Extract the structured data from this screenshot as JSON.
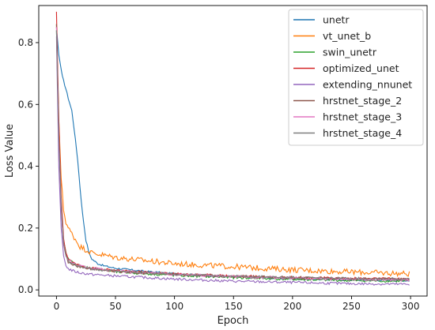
{
  "chart_data": {
    "type": "line",
    "title": "",
    "xlabel": "Epoch",
    "ylabel": "Loss Value",
    "xlim": [
      -15,
      314
    ],
    "ylim": [
      -0.02,
      0.92
    ],
    "xticks": [
      0,
      50,
      100,
      150,
      200,
      250,
      300
    ],
    "yticks": [
      0.0,
      0.2,
      0.4,
      0.6,
      0.8
    ],
    "grid": false,
    "legend_position": "top-right",
    "series": [
      {
        "name": "unetr",
        "color": "#1f77b4",
        "noise": 0.003,
        "points": [
          [
            0,
            0.85
          ],
          [
            2,
            0.76
          ],
          [
            5,
            0.69
          ],
          [
            8,
            0.65
          ],
          [
            10,
            0.62
          ],
          [
            13,
            0.58
          ],
          [
            15,
            0.52
          ],
          [
            18,
            0.42
          ],
          [
            20,
            0.33
          ],
          [
            22,
            0.25
          ],
          [
            25,
            0.16
          ],
          [
            28,
            0.115
          ],
          [
            30,
            0.1
          ],
          [
            35,
            0.085
          ],
          [
            40,
            0.078
          ],
          [
            50,
            0.07
          ],
          [
            75,
            0.06
          ],
          [
            100,
            0.052
          ],
          [
            150,
            0.042
          ],
          [
            200,
            0.036
          ],
          [
            250,
            0.032
          ],
          [
            299,
            0.03
          ]
        ]
      },
      {
        "name": "vt_unet_b",
        "color": "#ff7f0e",
        "noise": 0.009,
        "points": [
          [
            0,
            0.86
          ],
          [
            2,
            0.55
          ],
          [
            4,
            0.36
          ],
          [
            6,
            0.26
          ],
          [
            8,
            0.22
          ],
          [
            10,
            0.2
          ],
          [
            15,
            0.17
          ],
          [
            20,
            0.14
          ],
          [
            25,
            0.13
          ],
          [
            30,
            0.12
          ],
          [
            50,
            0.105
          ],
          [
            100,
            0.085
          ],
          [
            150,
            0.075
          ],
          [
            200,
            0.065
          ],
          [
            250,
            0.058
          ],
          [
            299,
            0.052
          ]
        ]
      },
      {
        "name": "swin_unetr",
        "color": "#2ca02c",
        "noise": 0.004,
        "points": [
          [
            0,
            0.84
          ],
          [
            2,
            0.5
          ],
          [
            4,
            0.28
          ],
          [
            6,
            0.16
          ],
          [
            8,
            0.12
          ],
          [
            10,
            0.1
          ],
          [
            15,
            0.085
          ],
          [
            20,
            0.078
          ],
          [
            30,
            0.07
          ],
          [
            50,
            0.058
          ],
          [
            100,
            0.047
          ],
          [
            150,
            0.04
          ],
          [
            200,
            0.034
          ],
          [
            250,
            0.03
          ],
          [
            299,
            0.028
          ]
        ]
      },
      {
        "name": "optimized_unet",
        "color": "#d62728",
        "noise": 0.004,
        "points": [
          [
            0,
            0.9
          ],
          [
            2,
            0.55
          ],
          [
            4,
            0.3
          ],
          [
            6,
            0.17
          ],
          [
            8,
            0.12
          ],
          [
            10,
            0.1
          ],
          [
            15,
            0.085
          ],
          [
            20,
            0.08
          ],
          [
            30,
            0.07
          ],
          [
            50,
            0.062
          ],
          [
            100,
            0.052
          ],
          [
            150,
            0.045
          ],
          [
            200,
            0.04
          ],
          [
            250,
            0.037
          ],
          [
            299,
            0.035
          ]
        ]
      },
      {
        "name": "extending_nnunet",
        "color": "#9467bd",
        "noise": 0.004,
        "points": [
          [
            0,
            0.82
          ],
          [
            2,
            0.4
          ],
          [
            4,
            0.2
          ],
          [
            6,
            0.11
          ],
          [
            8,
            0.08
          ],
          [
            10,
            0.068
          ],
          [
            15,
            0.06
          ],
          [
            20,
            0.055
          ],
          [
            30,
            0.05
          ],
          [
            50,
            0.045
          ],
          [
            100,
            0.035
          ],
          [
            150,
            0.028
          ],
          [
            200,
            0.024
          ],
          [
            250,
            0.02
          ],
          [
            299,
            0.018
          ]
        ]
      },
      {
        "name": "hrstnet_stage_2",
        "color": "#8c564b",
        "noise": 0.004,
        "points": [
          [
            0,
            0.86
          ],
          [
            2,
            0.5
          ],
          [
            4,
            0.28
          ],
          [
            6,
            0.15
          ],
          [
            8,
            0.11
          ],
          [
            10,
            0.09
          ],
          [
            15,
            0.08
          ],
          [
            20,
            0.075
          ],
          [
            30,
            0.068
          ],
          [
            50,
            0.06
          ],
          [
            100,
            0.05
          ],
          [
            150,
            0.044
          ],
          [
            200,
            0.04
          ],
          [
            250,
            0.036
          ],
          [
            299,
            0.034
          ]
        ]
      },
      {
        "name": "hrstnet_stage_3",
        "color": "#e377c2",
        "noise": 0.004,
        "points": [
          [
            0,
            0.85
          ],
          [
            2,
            0.5
          ],
          [
            4,
            0.27
          ],
          [
            6,
            0.15
          ],
          [
            8,
            0.11
          ],
          [
            10,
            0.095
          ],
          [
            15,
            0.085
          ],
          [
            20,
            0.078
          ],
          [
            30,
            0.07
          ],
          [
            50,
            0.062
          ],
          [
            100,
            0.05
          ],
          [
            150,
            0.043
          ],
          [
            200,
            0.038
          ],
          [
            250,
            0.034
          ],
          [
            299,
            0.032
          ]
        ]
      },
      {
        "name": "hrstnet_stage_4",
        "color": "#7f7f7f",
        "noise": 0.004,
        "points": [
          [
            0,
            0.84
          ],
          [
            2,
            0.5
          ],
          [
            4,
            0.27
          ],
          [
            6,
            0.15
          ],
          [
            8,
            0.11
          ],
          [
            10,
            0.092
          ],
          [
            15,
            0.082
          ],
          [
            20,
            0.076
          ],
          [
            30,
            0.068
          ],
          [
            50,
            0.06
          ],
          [
            100,
            0.05
          ],
          [
            150,
            0.044
          ],
          [
            200,
            0.04
          ],
          [
            250,
            0.037
          ],
          [
            299,
            0.035
          ]
        ]
      }
    ]
  }
}
